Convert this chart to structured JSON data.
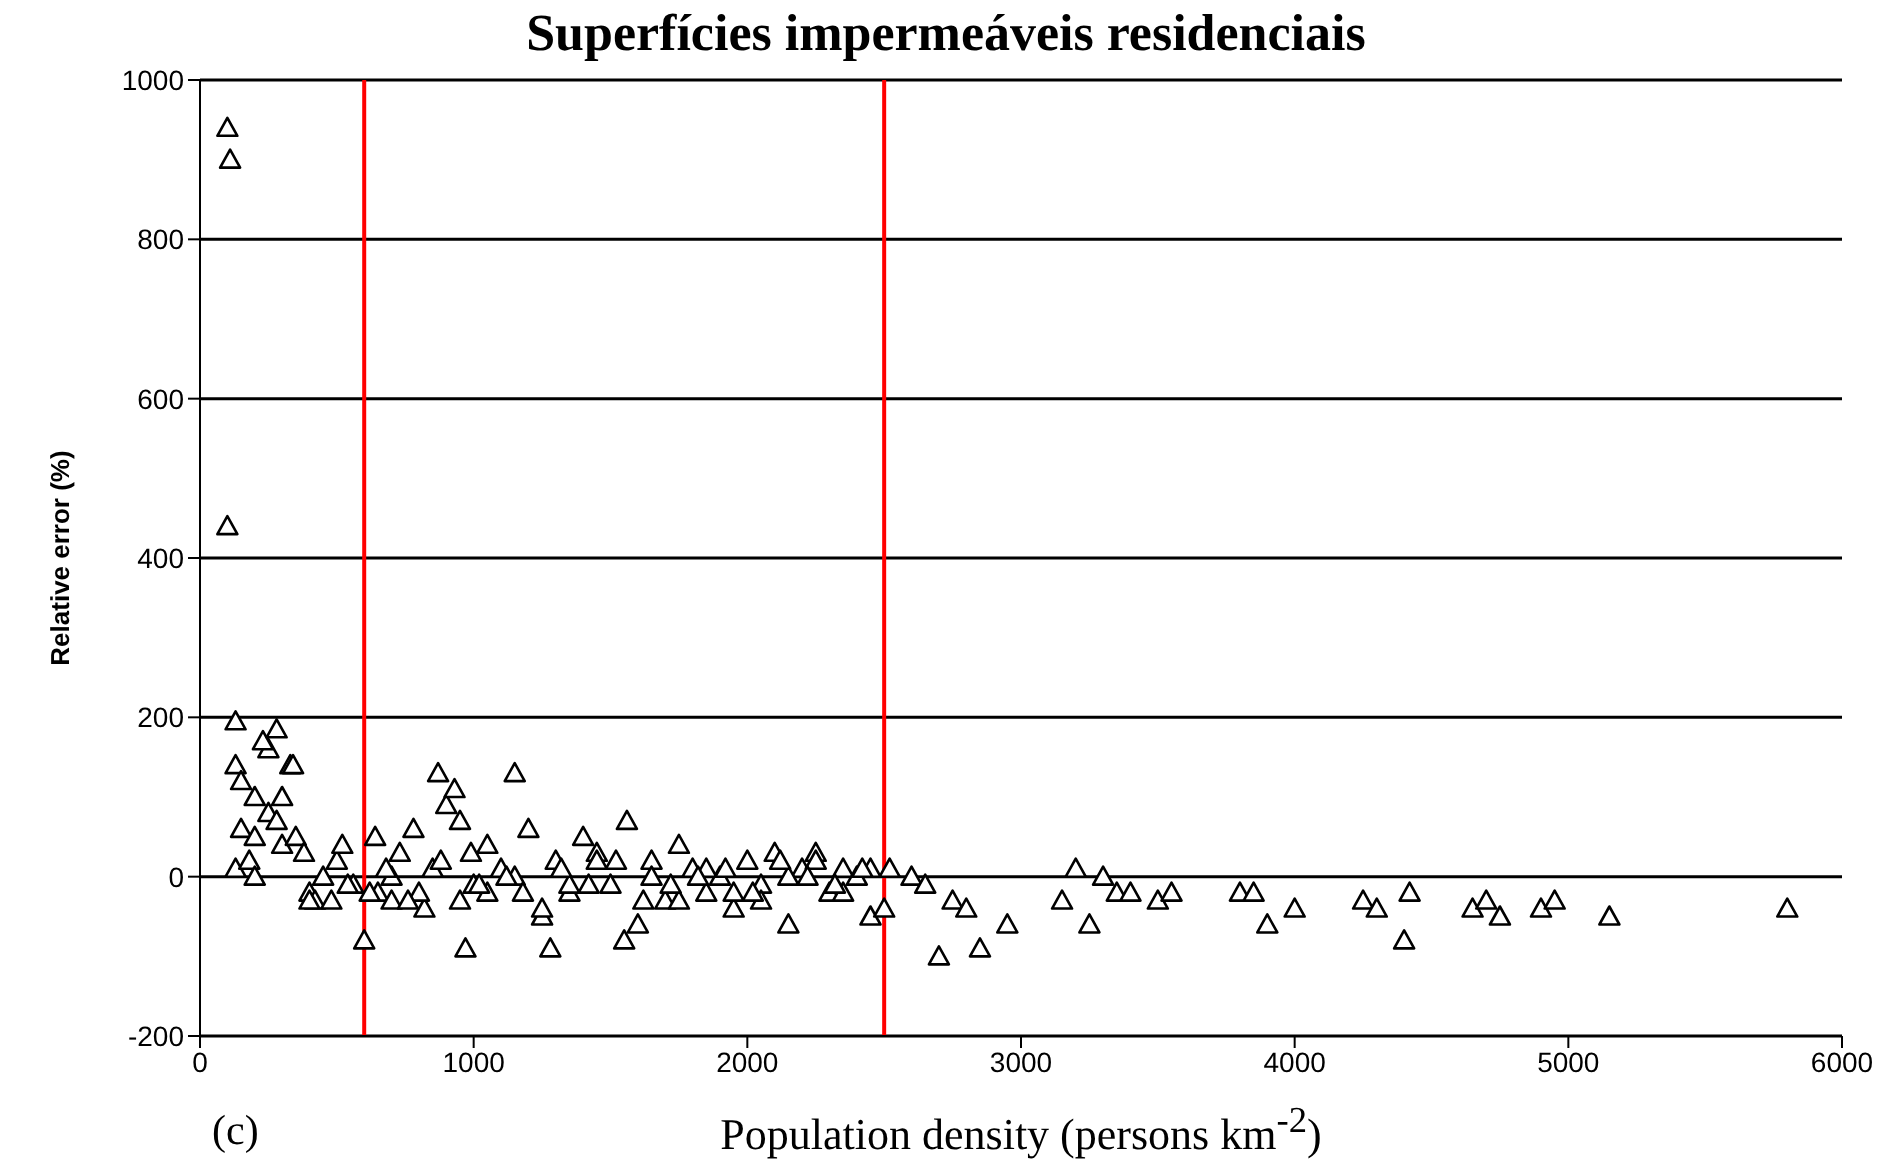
{
  "chart_data": {
    "type": "scatter",
    "title": "Superfícies impermeáveis residenciais",
    "xlabel": "Population density (persons km$^{-2}$)",
    "ylabel": "Relative error (%)",
    "annotations": [
      "(c)"
    ],
    "xlim": [
      0,
      6000
    ],
    "xticks": [
      0,
      1000,
      2000,
      3000,
      4000,
      5000,
      6000
    ],
    "ylim": [
      -200,
      1000
    ],
    "yticks": [
      -200,
      0,
      200,
      400,
      600,
      800,
      1000
    ],
    "grid": "y",
    "marker": "triangle",
    "legend": false,
    "ref_lines": [
      {
        "axis": "x",
        "value": 600,
        "color": "#ff0000"
      },
      {
        "axis": "x",
        "value": 2500,
        "color": "#ff0000"
      }
    ],
    "series": [
      {
        "color": "#000000",
        "x": [
          100,
          110,
          100,
          130,
          130,
          150,
          200,
          250,
          230,
          280,
          300,
          330,
          340,
          150,
          200,
          250,
          280,
          300,
          350,
          380,
          400,
          420,
          130,
          180,
          200,
          400,
          450,
          500,
          520,
          560,
          600,
          640,
          650,
          700,
          730,
          780,
          820,
          870,
          900,
          930,
          950,
          970,
          990,
          1000,
          1050,
          1100,
          1150,
          1200,
          1250,
          1280,
          1300,
          1350,
          1400,
          1450,
          1500,
          1550,
          1560,
          1600,
          1650,
          1700,
          1750,
          1800,
          1850,
          1900,
          1950,
          2000,
          2050,
          2100,
          2150,
          2200,
          2250,
          2300,
          2350,
          2400,
          2450,
          2500,
          2520,
          2600,
          2650,
          2700,
          2750,
          2800,
          2850,
          2950,
          3150,
          3200,
          3250,
          3300,
          3350,
          3400,
          3500,
          3550,
          3800,
          3850,
          3900,
          4000,
          4250,
          4300,
          4400,
          4420,
          4650,
          4700,
          4750,
          4900,
          4950,
          5150,
          5800,
          700,
          800,
          850,
          950,
          1050,
          1150,
          1250,
          1350,
          1450,
          1650,
          1750,
          1850,
          1950,
          2050,
          2150,
          2250,
          2350,
          2450,
          480,
          540,
          620,
          680,
          760,
          880,
          1020,
          1120,
          1180,
          1320,
          1420,
          1520,
          1620,
          1720,
          1820,
          1920,
          2020,
          2120,
          2220,
          2320,
          2420
        ],
        "values": [
          940,
          900,
          440,
          195,
          140,
          120,
          100,
          160,
          170,
          185,
          100,
          140,
          140,
          60,
          50,
          80,
          70,
          40,
          50,
          30,
          -20,
          -30,
          10,
          20,
          0,
          -30,
          0,
          20,
          40,
          -10,
          -80,
          50,
          -20,
          -30,
          30,
          60,
          -40,
          130,
          90,
          110,
          70,
          -90,
          30,
          -10,
          40,
          10,
          130,
          60,
          -50,
          -90,
          20,
          -20,
          50,
          30,
          -10,
          -80,
          70,
          -60,
          20,
          -30,
          40,
          10,
          -20,
          0,
          -40,
          20,
          -10,
          30,
          -60,
          10,
          30,
          -20,
          10,
          0,
          -50,
          -40,
          10,
          0,
          -10,
          -100,
          -30,
          -40,
          -90,
          -60,
          -30,
          10,
          -60,
          0,
          -20,
          -20,
          -30,
          -20,
          -20,
          -20,
          -60,
          -40,
          -30,
          -40,
          -80,
          -20,
          -40,
          -30,
          -50,
          -40,
          -30,
          -50,
          -40,
          0,
          -20,
          10,
          -30,
          -20,
          0,
          -40,
          -10,
          20,
          0,
          -30,
          10,
          -20,
          -30,
          0,
          20,
          -20,
          10,
          -30,
          -10,
          -20,
          10,
          -30,
          20,
          -10,
          0,
          -20,
          10,
          -10,
          20,
          -30,
          -10,
          0,
          10,
          -20,
          20,
          0,
          -10,
          10
        ]
      }
    ]
  }
}
